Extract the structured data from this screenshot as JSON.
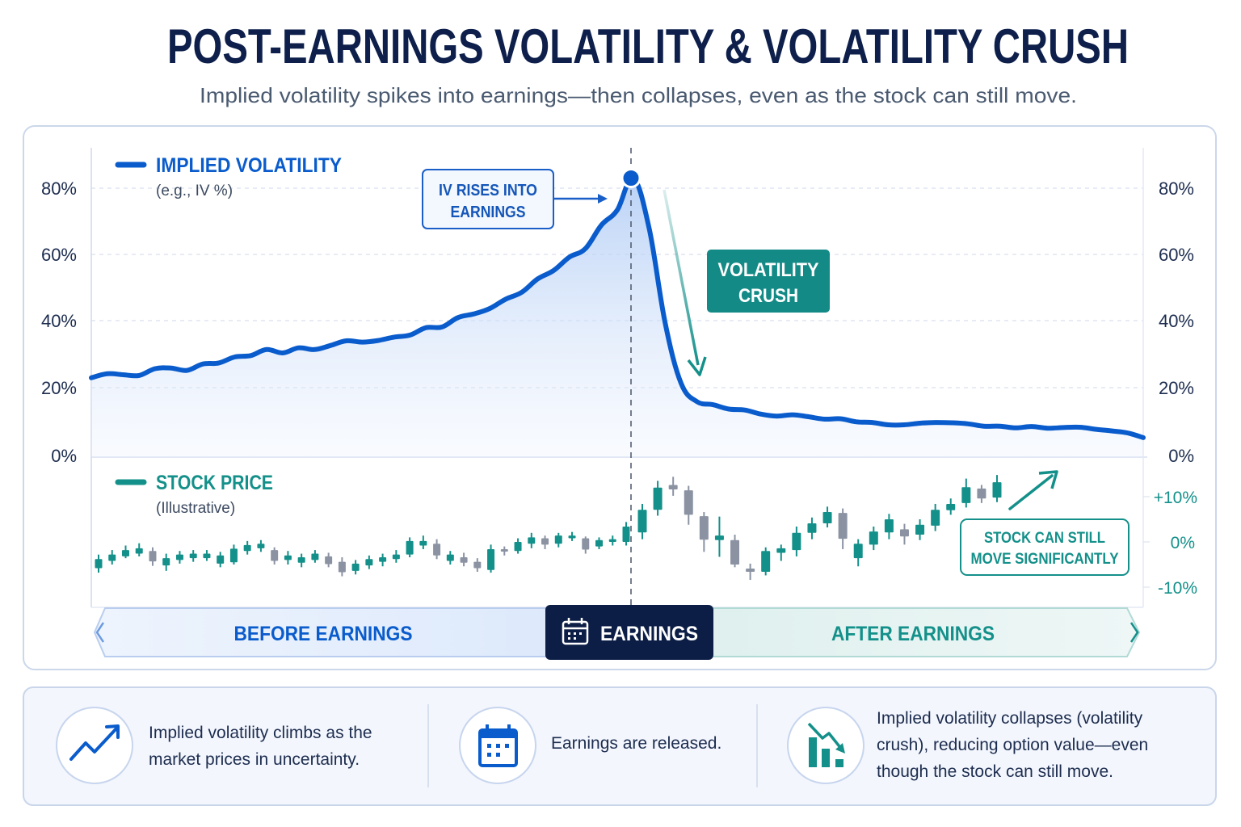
{
  "title": "POST-EARNINGS VOLATILITY & VOLATILITY CRUSH",
  "subtitle": "Implied volatility spikes into earnings—then collapses, even as the stock can still move.",
  "colors": {
    "iv_line": "#0a5ccc",
    "iv_fill": "#bcd4f7",
    "stock_up": "#14908a",
    "stock_down": "#8b93a3",
    "navy": "#0c1e46",
    "teal": "#14908a"
  },
  "chart_data": {
    "type": "line+candlestick",
    "grid": true,
    "iv": {
      "type": "line",
      "legend": "IMPLIED VOLATILITY",
      "legend_note": "(e.g., IV %)",
      "ylim": [
        0,
        80
      ],
      "ticks": [
        "80%",
        "60%",
        "40%",
        "20%",
        "0%"
      ],
      "peak_marker_at_earnings": true,
      "values": [
        23.6,
        24.8,
        24.5,
        24.3,
        26.3,
        26.5,
        25.8,
        27.7,
        28,
        29.8,
        30.2,
        32,
        31,
        32.5,
        32,
        33.2,
        34.6,
        34.2,
        34.7,
        35.7,
        36.3,
        38.5,
        38.7,
        41.5,
        42.6,
        44.2,
        47,
        49,
        53,
        55.5,
        59.5,
        62,
        69,
        73.5,
        83,
        68,
        40,
        22,
        16.5,
        15.6,
        14.3,
        14,
        12.8,
        12.2,
        12.6,
        12,
        11.3,
        11.4,
        10.5,
        10.3,
        9.6,
        9.6,
        10.1,
        10.3,
        10.2,
        9.9,
        9.2,
        9.2,
        8.7,
        9.1,
        8.6,
        8.8,
        8.9,
        8.3,
        7.8,
        7.2,
        5.8
      ],
      "earnings_index": 34
    },
    "stock": {
      "type": "candlestick",
      "legend": "STOCK PRICE",
      "legend_note": "(Illustrative)",
      "ylim": [
        -10,
        10
      ],
      "ticks": [
        "+10%",
        "0%",
        "-10%"
      ],
      "candle_format": [
        "open",
        "close",
        "high",
        "low"
      ],
      "before_earnings": [
        [
          -5.8,
          -3.8,
          -2.8,
          -6.8
        ],
        [
          -4.2,
          -2.8,
          -1.8,
          -5.0
        ],
        [
          -3.2,
          -1.8,
          -0.8,
          -3.6
        ],
        [
          -2.6,
          -1.4,
          -0.3,
          -3.2
        ],
        [
          -2.0,
          -4.3,
          -1.2,
          -5.3
        ],
        [
          -5.2,
          -3.6,
          -2.6,
          -6.4
        ],
        [
          -4.0,
          -2.8,
          -2.0,
          -4.8
        ],
        [
          -3.6,
          -2.6,
          -1.8,
          -4.4
        ],
        [
          -3.6,
          -2.6,
          -1.8,
          -4.2
        ],
        [
          -4.8,
          -3.0,
          -2.2,
          -5.6
        ],
        [
          -4.5,
          -1.5,
          -0.6,
          -5.0
        ],
        [
          -2.0,
          -0.7,
          0.2,
          -2.8
        ],
        [
          -1.4,
          -0.4,
          0.4,
          -2.2
        ],
        [
          -1.8,
          -4.2,
          -1.2,
          -5.0
        ],
        [
          -4.0,
          -3.0,
          -2.0,
          -5.0
        ],
        [
          -4.6,
          -3.4,
          -2.6,
          -5.6
        ],
        [
          -4.0,
          -2.6,
          -1.8,
          -4.6
        ],
        [
          -3.2,
          -4.9,
          -2.4,
          -5.6
        ],
        [
          -4.4,
          -6.7,
          -3.4,
          -7.6
        ],
        [
          -6.4,
          -4.8,
          -4.0,
          -7.2
        ],
        [
          -5.2,
          -3.8,
          -3.0,
          -6.0
        ],
        [
          -4.4,
          -3.4,
          -2.6,
          -5.4
        ],
        [
          -3.8,
          -2.8,
          -1.8,
          -4.6
        ],
        [
          -2.8,
          0.2,
          1.0,
          -3.4
        ],
        [
          -0.8,
          0.2,
          1.4,
          -1.6
        ],
        [
          -0.4,
          -3.0,
          0.6,
          -3.8
        ],
        [
          -4.2,
          -2.8,
          -2.0,
          -5.0
        ],
        [
          -3.4,
          -4.6,
          -2.4,
          -5.4
        ],
        [
          -4.4,
          -5.8,
          -3.6,
          -6.6
        ],
        [
          -6.2,
          -1.6,
          -0.6,
          -6.8
        ],
        [
          -1.6,
          -2.0,
          -1.0,
          -3.0
        ],
        [
          -2.0,
          0.0,
          0.8,
          -2.6
        ],
        [
          -0.4,
          1.0,
          2.0,
          -1.4
        ],
        [
          0.8,
          -0.6,
          1.4,
          -1.6
        ],
        [
          -0.4,
          1.4,
          2.0,
          -1.2
        ],
        [
          0.8,
          1.4,
          2.2,
          0.2
        ],
        [
          0.8,
          -1.7,
          1.2,
          -2.6
        ],
        [
          -1.0,
          0.4,
          1.0,
          -1.6
        ],
        [
          0.0,
          0.6,
          1.4,
          -0.8
        ],
        [
          0.0,
          3.4,
          4.4,
          -0.8
        ]
      ],
      "after_earnings": [
        [
          2.1,
          7.1,
          8.4,
          0.6
        ],
        [
          7.1,
          12,
          13.5,
          5.8
        ],
        [
          12.6,
          11.6,
          14.4,
          10.2
        ],
        [
          11.4,
          6,
          12.4,
          3.8
        ],
        [
          5.7,
          0.5,
          6.6,
          -2.2
        ],
        [
          0.4,
          1.4,
          5.6,
          -3.3
        ],
        [
          0.4,
          -5,
          1.6,
          -5.6
        ],
        [
          -5.9,
          -6.6,
          -4.8,
          -8.4
        ],
        [
          -6.6,
          -2,
          -1.2,
          -7.4
        ],
        [
          -2.4,
          -1.4,
          -0.6,
          -4.2
        ],
        [
          -1.8,
          2,
          3.4,
          -3.2
        ],
        [
          2,
          4.1,
          5.4,
          0.6
        ],
        [
          4.1,
          6.6,
          7.8,
          3.2
        ],
        [
          6.4,
          0.7,
          7.4,
          -1.6
        ],
        [
          -3.6,
          -0.4,
          0.6,
          -5.4
        ],
        [
          -0.6,
          2.3,
          3.4,
          -1.8
        ],
        [
          2.1,
          5,
          6.2,
          0.6
        ],
        [
          2.8,
          1.2,
          4,
          -0.6
        ],
        [
          1.6,
          3.8,
          5,
          0.4
        ],
        [
          3.6,
          7.1,
          8.4,
          2.4
        ],
        [
          7,
          8.4,
          9.6,
          6
        ],
        [
          8.6,
          12.1,
          14,
          7.6
        ],
        [
          11.8,
          9.6,
          12.6,
          8.6
        ],
        [
          9.8,
          13.2,
          14.8,
          8.8
        ]
      ]
    },
    "annotations": {
      "iv_rise": [
        "IV RISES INTO",
        "EARNINGS"
      ],
      "crush": [
        "VOLATILITY",
        "CRUSH"
      ],
      "stock_move": [
        "STOCK CAN STILL",
        "MOVE SIGNIFICANTLY"
      ]
    }
  },
  "timeline": {
    "before": "BEFORE EARNINGS",
    "earnings": "EARNINGS",
    "earnings_icon": "calendar-icon",
    "after": "AFTER EARNINGS"
  },
  "summary": [
    {
      "icon": "trending-up-icon",
      "lines": [
        "Implied volatility climbs as the",
        "market prices in uncertainty."
      ]
    },
    {
      "icon": "calendar-icon",
      "lines": [
        "Earnings are released."
      ]
    },
    {
      "icon": "chart-down-icon",
      "lines": [
        "Implied volatility collapses (volatility",
        "crush), reducing option value—even",
        "though the stock can still move."
      ]
    }
  ]
}
